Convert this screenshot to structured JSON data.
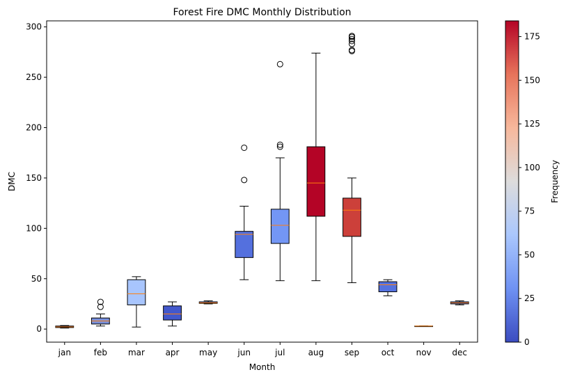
{
  "chart_data": {
    "type": "box",
    "title": "Forest Fire DMC Monthly Distribution",
    "xlabel": "Month",
    "ylabel": "DMC",
    "ylim": [
      -13,
      306
    ],
    "yticks": [
      0,
      50,
      100,
      150,
      200,
      250,
      300
    ],
    "categories": [
      "jan",
      "feb",
      "mar",
      "apr",
      "may",
      "jun",
      "jul",
      "aug",
      "sep",
      "oct",
      "nov",
      "dec"
    ],
    "boxes": [
      {
        "month": "jan",
        "whisker_low": 1,
        "q1": 1.5,
        "median": 2.2,
        "q3": 3,
        "whisker_high": 3.5,
        "outliers": [],
        "frequency": 2,
        "color": "#3b4cc0"
      },
      {
        "month": "feb",
        "whisker_low": 3,
        "q1": 5,
        "median": 8,
        "q3": 11,
        "whisker_high": 15,
        "outliers": [
          22,
          27
        ],
        "frequency": 20,
        "color": "#7a8fd8"
      },
      {
        "month": "mar",
        "whisker_low": 2,
        "q1": 24,
        "median": 35,
        "q3": 49,
        "whisker_high": 52,
        "outliers": [],
        "frequency": 54,
        "color": "#a8c5fd"
      },
      {
        "month": "apr",
        "whisker_low": 3,
        "q1": 9,
        "median": 15,
        "q3": 23,
        "whisker_high": 27,
        "outliers": [],
        "frequency": 9,
        "color": "#4358cb"
      },
      {
        "month": "may",
        "whisker_low": 25,
        "q1": 25.5,
        "median": 26,
        "q3": 27,
        "whisker_high": 28,
        "outliers": [],
        "frequency": 2,
        "color": "#3b4cc0"
      },
      {
        "month": "jun",
        "whisker_low": 49,
        "q1": 71,
        "median": 94,
        "q3": 97,
        "whisker_high": 122,
        "outliers": [
          148,
          180
        ],
        "frequency": 17,
        "color": "#5470de"
      },
      {
        "month": "jul",
        "whisker_low": 48,
        "q1": 85,
        "median": 103,
        "q3": 119,
        "whisker_high": 170,
        "outliers": [
          181,
          183,
          263
        ],
        "frequency": 32,
        "color": "#7396f5"
      },
      {
        "month": "aug",
        "whisker_low": 48,
        "q1": 112,
        "median": 145,
        "q3": 181,
        "whisker_high": 274,
        "outliers": [],
        "frequency": 184,
        "color": "#b40426"
      },
      {
        "month": "sep",
        "whisker_low": 46,
        "q1": 92,
        "median": 118,
        "q3": 130,
        "whisker_high": 150,
        "outliers": [
          276,
          277,
          283,
          286,
          288,
          290,
          291
        ],
        "frequency": 172,
        "color": "#cc403a"
      },
      {
        "month": "oct",
        "whisker_low": 33,
        "q1": 37,
        "median": 44,
        "q3": 47,
        "whisker_high": 49,
        "outliers": [],
        "frequency": 15,
        "color": "#5572df"
      },
      {
        "month": "nov",
        "whisker_low": 3,
        "q1": 3,
        "median": 3,
        "q3": 3,
        "whisker_high": 3,
        "outliers": [],
        "frequency": 1,
        "color": "#3b4cc0"
      },
      {
        "month": "dec",
        "whisker_low": 24,
        "q1": 25,
        "median": 26,
        "q3": 27,
        "whisker_high": 28,
        "outliers": [],
        "frequency": 9,
        "color": "#4358cb"
      }
    ],
    "colorbar": {
      "label": "Frequency",
      "colormap": "coolwarm",
      "range": [
        0,
        184
      ],
      "ticks": [
        0,
        25,
        50,
        75,
        100,
        125,
        150,
        175
      ],
      "stops": [
        "#3b4cc0",
        "#6f92f3",
        "#aac7fd",
        "#dddcdc",
        "#f7b89c",
        "#e7745b",
        "#b40426"
      ]
    },
    "median_color": "#ff7f0e",
    "grid": false,
    "legend": "none"
  }
}
